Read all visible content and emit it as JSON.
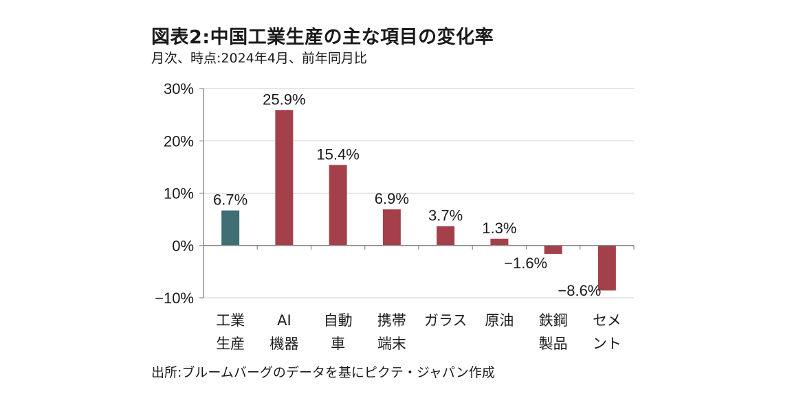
{
  "header": {
    "title": "図表2:中国工業生産の主な項目の変化率",
    "subtitle": "月次、時点:2024年4月、前年同月比"
  },
  "footer": {
    "source": "出所:ブルームバーグのデータを基にピクテ・ジャパン作成"
  },
  "colors": {
    "highlight": "#3f6e74",
    "bar": "#a3404a",
    "axis": "#888888",
    "grid": "#d6d6d6"
  },
  "chart_data": {
    "type": "bar",
    "categories": [
      [
        "工業",
        "生産"
      ],
      [
        "AI",
        "機器"
      ],
      [
        "自動",
        "車"
      ],
      [
        "携帯",
        "端末"
      ],
      [
        "ガラス"
      ],
      [
        "原油"
      ],
      [
        "鉄鋼",
        "製品"
      ],
      [
        "セメ",
        "ント"
      ]
    ],
    "values": [
      6.7,
      25.9,
      15.4,
      6.9,
      3.7,
      1.3,
      -1.6,
      -8.6
    ],
    "data_labels": [
      "6.7%",
      "25.9%",
      "15.4%",
      "6.9%",
      "3.7%",
      "1.3%",
      "−1.6%",
      "−8.6%"
    ],
    "highlight_index": 0,
    "ylim": [
      -10,
      30
    ],
    "yticks": [
      30,
      20,
      10,
      0,
      -10
    ],
    "ytick_labels": [
      "30%",
      "20%",
      "10%",
      "0%",
      "−10%"
    ],
    "grid": true,
    "legend": "none"
  }
}
